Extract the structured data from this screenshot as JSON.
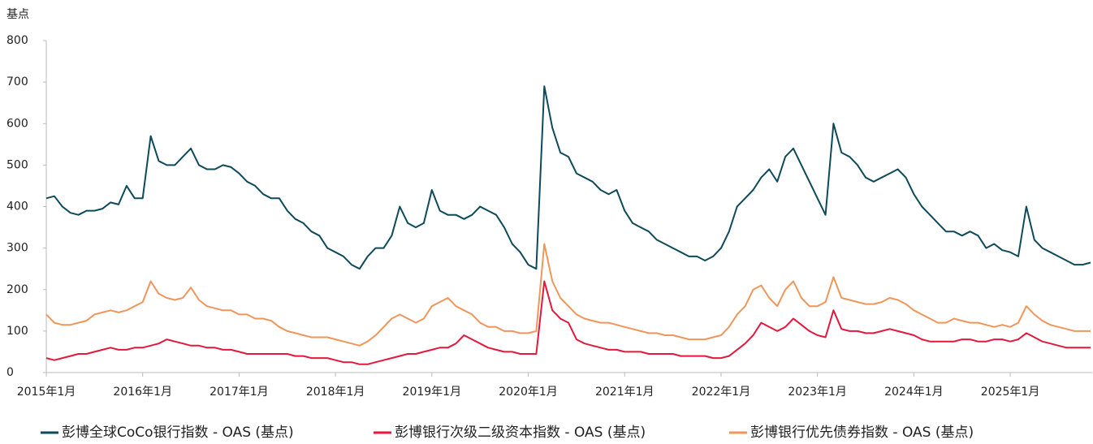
{
  "chart_data": {
    "type": "line",
    "y_label": "基点",
    "x": [
      "2015-01",
      "2015-02",
      "2015-03",
      "2015-04",
      "2015-05",
      "2015-06",
      "2015-07",
      "2015-08",
      "2015-09",
      "2015-10",
      "2015-11",
      "2015-12",
      "2016-01",
      "2016-02",
      "2016-03",
      "2016-04",
      "2016-05",
      "2016-06",
      "2016-07",
      "2016-08",
      "2016-09",
      "2016-10",
      "2016-11",
      "2016-12",
      "2017-01",
      "2017-02",
      "2017-03",
      "2017-04",
      "2017-05",
      "2017-06",
      "2017-07",
      "2017-08",
      "2017-09",
      "2017-10",
      "2017-11",
      "2017-12",
      "2018-01",
      "2018-02",
      "2018-03",
      "2018-04",
      "2018-05",
      "2018-06",
      "2018-07",
      "2018-08",
      "2018-09",
      "2018-10",
      "2018-11",
      "2018-12",
      "2019-01",
      "2019-02",
      "2019-03",
      "2019-04",
      "2019-05",
      "2019-06",
      "2019-07",
      "2019-08",
      "2019-09",
      "2019-10",
      "2019-11",
      "2019-12",
      "2020-01",
      "2020-02",
      "2020-03",
      "2020-04",
      "2020-05",
      "2020-06",
      "2020-07",
      "2020-08",
      "2020-09",
      "2020-10",
      "2020-11",
      "2020-12",
      "2021-01",
      "2021-02",
      "2021-03",
      "2021-04",
      "2021-05",
      "2021-06",
      "2021-07",
      "2021-08",
      "2021-09",
      "2021-10",
      "2021-11",
      "2021-12",
      "2022-01",
      "2022-02",
      "2022-03",
      "2022-04",
      "2022-05",
      "2022-06",
      "2022-07",
      "2022-08",
      "2022-09",
      "2022-10",
      "2022-11",
      "2022-12",
      "2023-01",
      "2023-02",
      "2023-03",
      "2023-04",
      "2023-05",
      "2023-06",
      "2023-07",
      "2023-08",
      "2023-09",
      "2023-10",
      "2023-11",
      "2023-12",
      "2024-01",
      "2024-02",
      "2024-03",
      "2024-04",
      "2024-05",
      "2024-06",
      "2024-07",
      "2024-08",
      "2024-09",
      "2024-10",
      "2024-11",
      "2024-12",
      "2025-01",
      "2025-02",
      "2025-03",
      "2025-04",
      "2025-05",
      "2025-06",
      "2025-07",
      "2025-08",
      "2025-09",
      "2025-10",
      "2025-11"
    ],
    "series": [
      {
        "name": "彭博全球CoCo银行指数 - OAS (基点)",
        "color": "#0d4a5a",
        "values": [
          420,
          425,
          400,
          385,
          380,
          390,
          390,
          395,
          410,
          405,
          450,
          420,
          420,
          570,
          510,
          500,
          500,
          520,
          540,
          500,
          490,
          490,
          500,
          495,
          480,
          460,
          450,
          430,
          420,
          420,
          390,
          370,
          360,
          340,
          330,
          300,
          290,
          280,
          260,
          250,
          280,
          300,
          300,
          330,
          400,
          360,
          350,
          360,
          440,
          390,
          380,
          380,
          370,
          380,
          400,
          390,
          380,
          350,
          310,
          290,
          260,
          250,
          690,
          590,
          530,
          520,
          480,
          470,
          460,
          440,
          430,
          440,
          390,
          360,
          350,
          340,
          320,
          310,
          300,
          290,
          280,
          280,
          270,
          280,
          300,
          340,
          400,
          420,
          440,
          470,
          490,
          460,
          520,
          540,
          500,
          460,
          420,
          380,
          600,
          530,
          520,
          500,
          470,
          460,
          470,
          480,
          490,
          470,
          430,
          400,
          380,
          360,
          340,
          340,
          330,
          340,
          330,
          300,
          310,
          295,
          290,
          280,
          400,
          320,
          300,
          290,
          280,
          270,
          260,
          260,
          265
        ]
      },
      {
        "name": "彭博银行次级二级资本指数 - OAS (基点)",
        "color": "#e4183c",
        "values": [
          35,
          30,
          35,
          40,
          45,
          45,
          50,
          55,
          60,
          55,
          55,
          60,
          60,
          65,
          70,
          80,
          75,
          70,
          65,
          65,
          60,
          60,
          55,
          55,
          50,
          45,
          45,
          45,
          45,
          45,
          45,
          40,
          40,
          35,
          35,
          35,
          30,
          25,
          25,
          20,
          20,
          25,
          30,
          35,
          40,
          45,
          45,
          50,
          55,
          60,
          60,
          70,
          90,
          80,
          70,
          60,
          55,
          50,
          50,
          45,
          45,
          45,
          220,
          150,
          130,
          120,
          80,
          70,
          65,
          60,
          55,
          55,
          50,
          50,
          50,
          45,
          45,
          45,
          45,
          40,
          40,
          40,
          40,
          35,
          35,
          40,
          55,
          70,
          90,
          120,
          110,
          100,
          110,
          130,
          115,
          100,
          90,
          85,
          150,
          105,
          100,
          100,
          95,
          95,
          100,
          105,
          100,
          95,
          90,
          80,
          75,
          75,
          75,
          75,
          80,
          80,
          75,
          75,
          80,
          80,
          75,
          80,
          95,
          85,
          75,
          70,
          65,
          60,
          60,
          60,
          60
        ]
      },
      {
        "name": "彭博银行优先债券指数 - OAS (基点)",
        "color": "#f0965a",
        "values": [
          140,
          120,
          115,
          115,
          120,
          125,
          140,
          145,
          150,
          145,
          150,
          160,
          170,
          220,
          190,
          180,
          175,
          180,
          205,
          175,
          160,
          155,
          150,
          150,
          140,
          140,
          130,
          130,
          125,
          110,
          100,
          95,
          90,
          85,
          85,
          85,
          80,
          75,
          70,
          65,
          75,
          90,
          110,
          130,
          140,
          130,
          120,
          130,
          160,
          170,
          180,
          160,
          150,
          140,
          120,
          110,
          110,
          100,
          100,
          95,
          95,
          100,
          310,
          220,
          180,
          160,
          140,
          130,
          125,
          120,
          120,
          115,
          110,
          105,
          100,
          95,
          95,
          90,
          90,
          85,
          80,
          80,
          80,
          85,
          90,
          110,
          140,
          160,
          200,
          210,
          180,
          160,
          200,
          220,
          180,
          160,
          160,
          170,
          230,
          180,
          175,
          170,
          165,
          165,
          170,
          180,
          175,
          165,
          150,
          140,
          130,
          120,
          120,
          130,
          125,
          120,
          120,
          115,
          110,
          115,
          110,
          120,
          160,
          140,
          125,
          115,
          110,
          105,
          100,
          100,
          100
        ]
      }
    ],
    "xlim": [
      "2015-01",
      "2025-11"
    ],
    "xticks": [
      {
        "value": "2015-01",
        "label": "2015年1月"
      },
      {
        "value": "2016-01",
        "label": "2016年1月"
      },
      {
        "value": "2017-01",
        "label": "2017年1月"
      },
      {
        "value": "2018-01",
        "label": "2018年1月"
      },
      {
        "value": "2019-01",
        "label": "2019年1月"
      },
      {
        "value": "2020-01",
        "label": "2020年1月"
      },
      {
        "value": "2021-01",
        "label": "2021年1月"
      },
      {
        "value": "2022-01",
        "label": "2022年1月"
      },
      {
        "value": "2023-01",
        "label": "2023年1月"
      },
      {
        "value": "2024-01",
        "label": "2024年1月"
      },
      {
        "value": "2025-01",
        "label": "2025年1月"
      }
    ],
    "ylim": [
      0,
      800
    ],
    "yticks": [
      0,
      100,
      200,
      300,
      400,
      500,
      600,
      700,
      800
    ]
  }
}
